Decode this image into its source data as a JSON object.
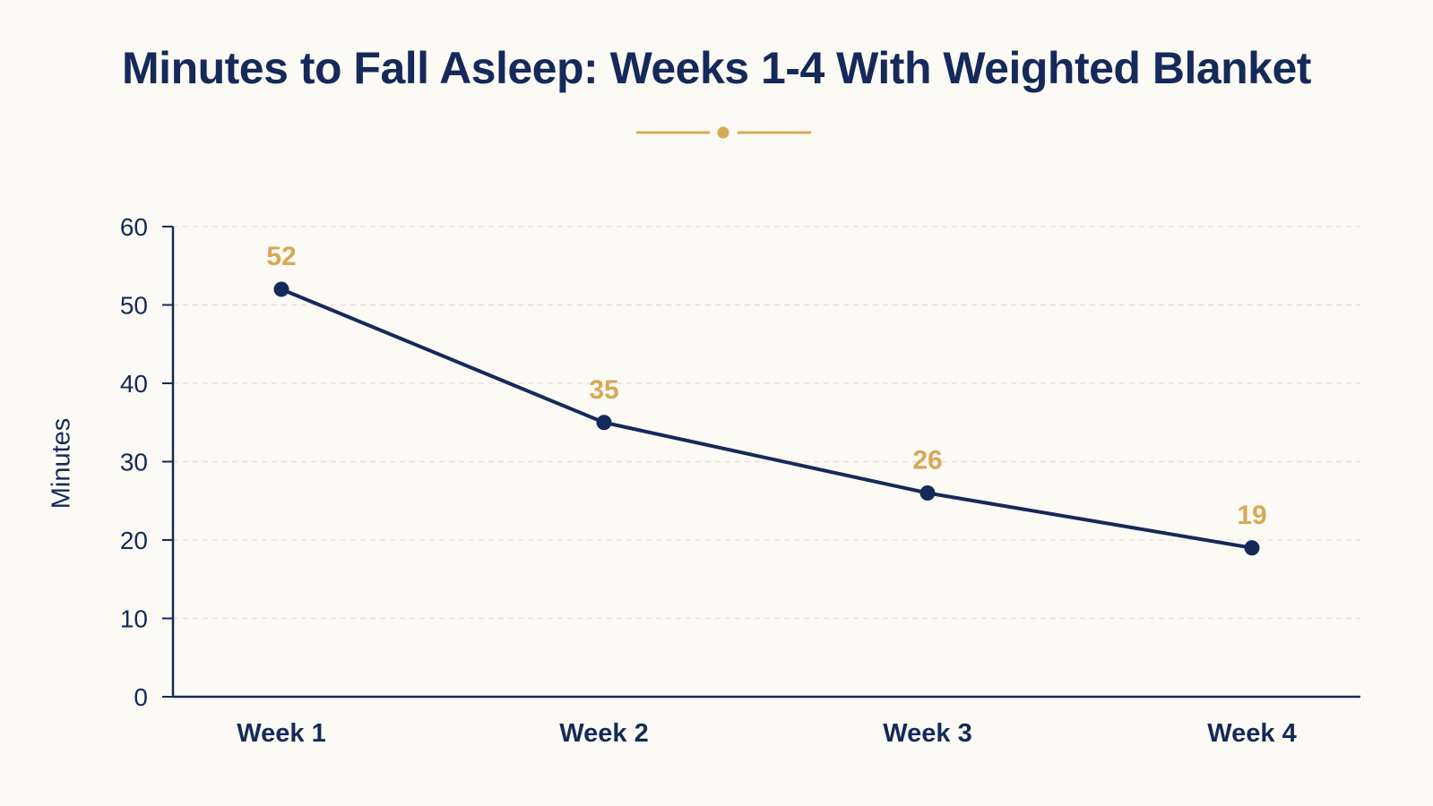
{
  "chart_data": {
    "type": "line",
    "title": "Minutes to Fall Asleep: Weeks 1-4 With Weighted Blanket",
    "xlabel": "",
    "ylabel": "Minutes",
    "categories": [
      "Week 1",
      "Week 2",
      "Week 3",
      "Week 4"
    ],
    "series": [
      {
        "values": [
          52,
          35,
          26,
          19
        ]
      }
    ],
    "data_labels": [
      "52",
      "35",
      "26",
      "19"
    ],
    "ylim": [
      0,
      60
    ],
    "yticks": [
      0,
      10,
      20,
      30,
      40,
      50,
      60
    ],
    "grid": "horizontal dashed",
    "legend": "none",
    "colors": {
      "line": "#15295a",
      "data_label": "#d7a857",
      "ornament": "#d7a857",
      "grid": "#e4e0d6",
      "background": "#fcfaf5"
    }
  }
}
